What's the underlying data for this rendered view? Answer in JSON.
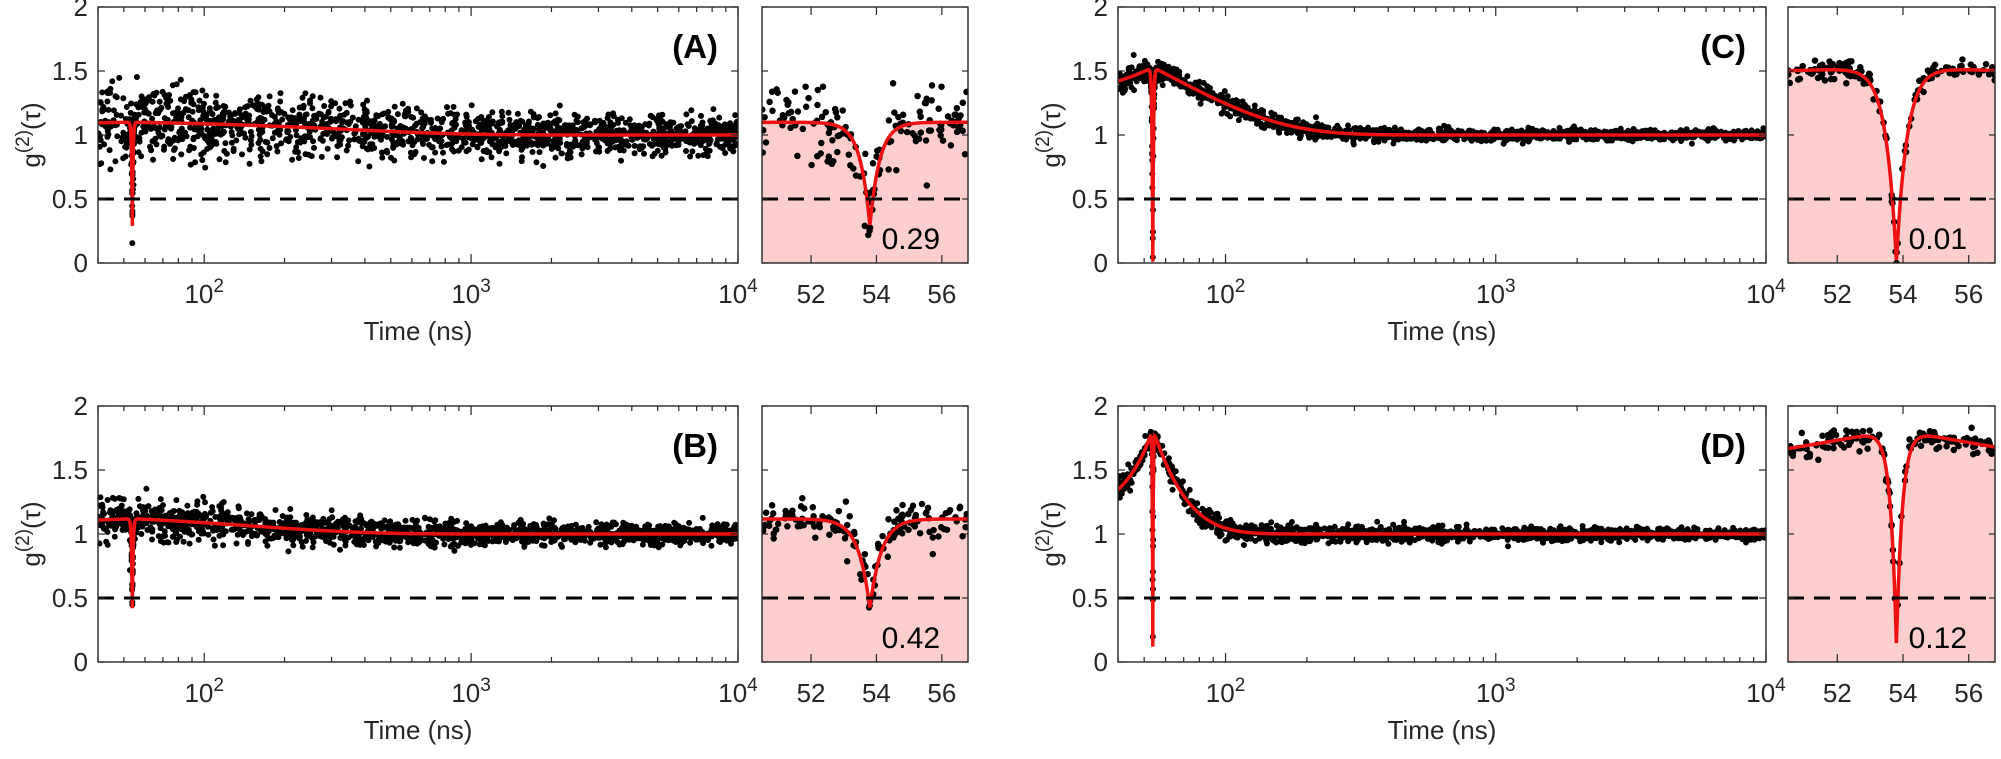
{
  "figure": {
    "colors": {
      "points": "#000000",
      "fit": "#ee1111",
      "threshold": "#000000",
      "inset_fill": "#fdcece"
    }
  },
  "chart_data": [
    {
      "type": "scatter",
      "panel": "(A)",
      "xlabel": "Time (ns)",
      "ylabel": "g(2)(τ)",
      "x_scale": "log",
      "xlim": [
        40,
        10000
      ],
      "ylim": [
        0,
        2
      ],
      "xticks": [
        100,
        1000,
        10000
      ],
      "xtick_labels": [
        "10^2",
        "10^3",
        "10^4"
      ],
      "yticks": [
        0,
        0.5,
        1,
        1.5,
        2
      ],
      "ytick_labels": [
        "0",
        "0.5",
        "1",
        "1.5",
        "2"
      ],
      "threshold": 0.5,
      "fit": {
        "peak_time": 53.8,
        "dip_min": 0.29,
        "plateau_start": 1.1,
        "plateau_end": 1.0,
        "decay_ns": 350,
        "dip_width": 0.3,
        "bunching_amp": 0.0,
        "bunching_decay": 30
      },
      "noise": 0.17,
      "inset": {
        "xlim": [
          50.5,
          56.8
        ],
        "xticks": [
          52,
          54,
          56
        ],
        "xtick_labels": [
          "52",
          "54",
          "56"
        ],
        "ylim": [
          0,
          2
        ],
        "value_label": "0.29"
      }
    },
    {
      "type": "scatter",
      "panel": "(B)",
      "xlabel": "Time (ns)",
      "ylabel": "g(2)(τ)",
      "x_scale": "log",
      "xlim": [
        40,
        10000
      ],
      "ylim": [
        0,
        2
      ],
      "xticks": [
        100,
        1000,
        10000
      ],
      "xtick_labels": [
        "10^2",
        "10^3",
        "10^4"
      ],
      "yticks": [
        0,
        0.5,
        1,
        1.5,
        2
      ],
      "ytick_labels": [
        "0",
        "0.5",
        "1",
        "1.5",
        "2"
      ],
      "threshold": 0.5,
      "fit": {
        "peak_time": 53.8,
        "dip_min": 0.42,
        "plateau_start": 1.12,
        "plateau_end": 1.0,
        "decay_ns": 150,
        "dip_width": 0.35,
        "bunching_amp": 0.0,
        "bunching_decay": 30
      },
      "noise": 0.09,
      "inset": {
        "xlim": [
          50.5,
          56.8
        ],
        "xticks": [
          52,
          54,
          56
        ],
        "xtick_labels": [
          "52",
          "54",
          "56"
        ],
        "ylim": [
          0,
          2
        ],
        "value_label": "0.42"
      }
    },
    {
      "type": "scatter",
      "panel": "(C)",
      "xlabel": "Time (ns)",
      "ylabel": "g(2)(τ)",
      "x_scale": "log",
      "xlim": [
        40,
        10000
      ],
      "ylim": [
        0,
        2
      ],
      "xticks": [
        100,
        1000,
        10000
      ],
      "xtick_labels": [
        "10^2",
        "10^3",
        "10^4"
      ],
      "yticks": [
        0,
        0.5,
        1,
        1.5,
        2
      ],
      "ytick_labels": [
        "0",
        "0.5",
        "1",
        "1.5",
        "2"
      ],
      "threshold": 0.5,
      "fit": {
        "peak_time": 53.8,
        "dip_min": 0.01,
        "plateau_start": 1.53,
        "plateau_end": 1.0,
        "decay_ns": 60,
        "dip_width": 0.32,
        "bunching_amp": 0.0,
        "bunching_decay": 30
      },
      "noise": 0.045,
      "inset": {
        "xlim": [
          50.5,
          56.8
        ],
        "xticks": [
          52,
          54,
          56
        ],
        "xtick_labels": [
          "52",
          "54",
          "56"
        ],
        "ylim": [
          0,
          2
        ],
        "value_label": "0.01"
      }
    },
    {
      "type": "scatter",
      "panel": "(D)",
      "xlabel": "Time (ns)",
      "ylabel": "g(2)(τ)",
      "x_scale": "log",
      "xlim": [
        40,
        10000
      ],
      "ylim": [
        0,
        2
      ],
      "xticks": [
        100,
        1000,
        10000
      ],
      "xtick_labels": [
        "10^2",
        "10^3",
        "10^4"
      ],
      "yticks": [
        0,
        0.5,
        1,
        1.5,
        2
      ],
      "ytick_labels": [
        "0",
        "0.5",
        "1",
        "1.5",
        "2"
      ],
      "threshold": 0.5,
      "fit": {
        "peak_time": 53.8,
        "dip_min": 0.12,
        "plateau_start": 1.82,
        "plateau_end": 1.0,
        "decay_ns": 16,
        "dip_width": 0.18,
        "bunching_amp": 0.0,
        "bunching_decay": 30
      },
      "noise": 0.05,
      "inset": {
        "xlim": [
          50.5,
          56.8
        ],
        "xticks": [
          52,
          54,
          56
        ],
        "xtick_labels": [
          "52",
          "54",
          "56"
        ],
        "ylim": [
          0,
          2
        ],
        "value_label": "0.12"
      }
    }
  ]
}
